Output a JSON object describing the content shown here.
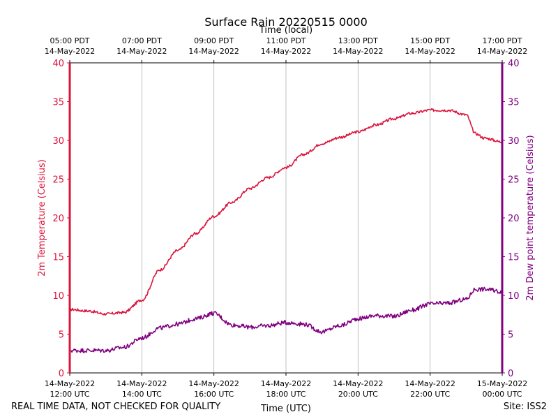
{
  "chart_data": {
    "type": "line",
    "title": "Surface Rain 20220515 0000",
    "xlabel": "Time (UTC)",
    "x2label": "Time (local)",
    "ylabel": "2m Temperature (Celsius)",
    "y2label": "2m Dew point temperature (Celsius)",
    "ylim": [
      0,
      40
    ],
    "y2lim": [
      0,
      40
    ],
    "yticks": [
      "0",
      "5",
      "10",
      "15",
      "20",
      "25",
      "30",
      "35",
      "40"
    ],
    "xlim_hours": [
      12,
      24
    ],
    "grid": "vertical at UTC ticks",
    "xticks_utc": [
      {
        "date": "14-May-2022",
        "time": "12:00 UTC"
      },
      {
        "date": "14-May-2022",
        "time": "14:00 UTC"
      },
      {
        "date": "14-May-2022",
        "time": "16:00 UTC"
      },
      {
        "date": "14-May-2022",
        "time": "18:00 UTC"
      },
      {
        "date": "14-May-2022",
        "time": "20:00 UTC"
      },
      {
        "date": "14-May-2022",
        "time": "22:00 UTC"
      },
      {
        "date": "15-May-2022",
        "time": "00:00 UTC"
      }
    ],
    "xticks_local": [
      {
        "time": "05:00 PDT",
        "date": "14-May-2022"
      },
      {
        "time": "07:00 PDT",
        "date": "14-May-2022"
      },
      {
        "time": "09:00 PDT",
        "date": "14-May-2022"
      },
      {
        "time": "11:00 PDT",
        "date": "14-May-2022"
      },
      {
        "time": "13:00 PDT",
        "date": "14-May-2022"
      },
      {
        "time": "15:00 PDT",
        "date": "14-May-2022"
      },
      {
        "time": "17:00 PDT",
        "date": "14-May-2022"
      }
    ],
    "series": [
      {
        "axis": "left",
        "color": "#dc143c",
        "x_utc_hours": [
          12.0,
          12.5,
          13.0,
          13.5,
          14.0,
          14.5,
          15.0,
          15.5,
          16.0,
          16.5,
          17.0,
          17.5,
          18.0,
          18.5,
          19.0,
          19.5,
          20.0,
          20.5,
          21.0,
          21.5,
          22.0,
          22.5,
          23.0,
          23.25,
          23.5,
          24.0
        ],
        "values": [
          8.2,
          8.0,
          7.6,
          7.8,
          9.4,
          13.3,
          15.8,
          18.0,
          20.2,
          22.0,
          23.8,
          25.2,
          26.5,
          28.2,
          29.6,
          30.4,
          31.1,
          32.0,
          32.8,
          33.5,
          33.9,
          33.9,
          33.3,
          30.9,
          30.3,
          29.8
        ]
      },
      {
        "axis": "right",
        "color": "#800080",
        "x_utc_hours": [
          12.0,
          12.5,
          13.0,
          13.5,
          14.0,
          14.5,
          15.0,
          15.5,
          16.0,
          16.5,
          17.0,
          17.5,
          18.0,
          18.5,
          19.0,
          19.5,
          20.0,
          20.5,
          21.0,
          21.5,
          22.0,
          22.5,
          23.0,
          23.25,
          23.5,
          24.0
        ],
        "values": [
          2.9,
          2.9,
          2.9,
          3.3,
          4.5,
          5.8,
          6.3,
          7.0,
          7.7,
          6.2,
          5.9,
          6.1,
          6.5,
          6.3,
          5.3,
          6.1,
          7.0,
          7.4,
          7.3,
          8.1,
          8.9,
          9.0,
          9.5,
          10.8,
          10.8,
          10.5
        ]
      }
    ]
  },
  "footer": {
    "disclaimer": "REAL TIME DATA, NOT CHECKED FOR QUALITY",
    "site": "Site: ISS2"
  }
}
